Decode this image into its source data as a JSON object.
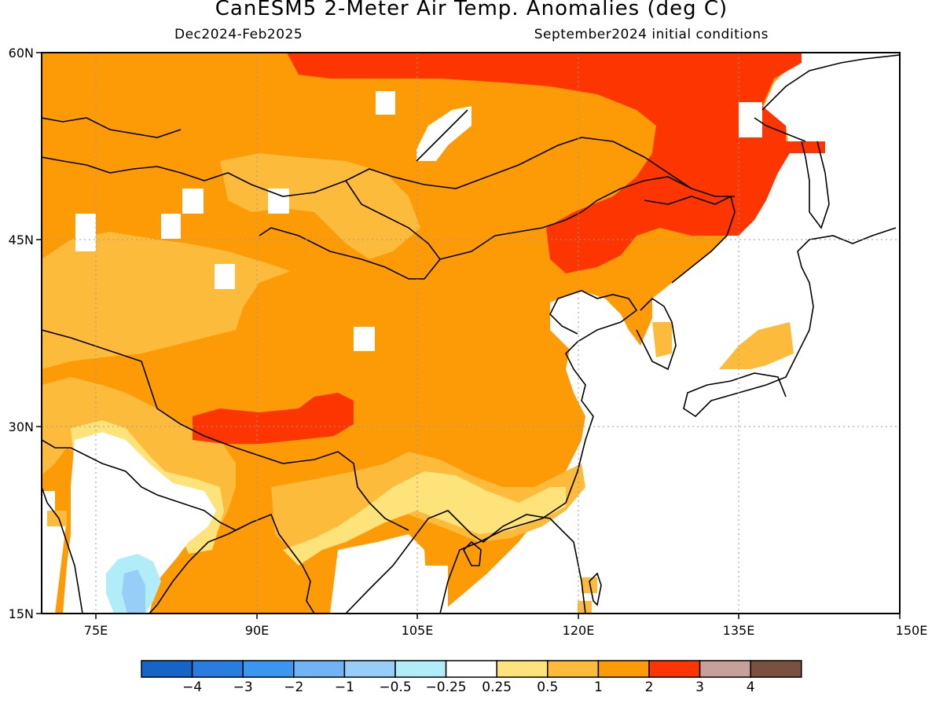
{
  "header": {
    "title": "CanESM5 2-Meter Air Temp. Anomalies (deg C)",
    "period": "Dec2024-Feb2025",
    "init": "September2024 initial conditions"
  },
  "map": {
    "lon_labels": [
      "75E",
      "90E",
      "105E",
      "120E",
      "135E",
      "150E"
    ],
    "lat_labels": [
      "60N",
      "45N",
      "30N",
      "15N"
    ],
    "grid_style": "dotted",
    "land_outline": "coastlines and national borders",
    "regions": [
      {
        "name": "mongolia-siberia-warm",
        "class": "1-2"
      },
      {
        "name": "northeast-china-hot",
        "class": "2-3"
      },
      {
        "name": "tibet-hot",
        "class": "2-3"
      },
      {
        "name": "india-cool",
        "class": "-0.5 to -1"
      }
    ]
  },
  "colorbar": {
    "colors": [
      "#1565c8",
      "#2a7de0",
      "#3a96ee",
      "#70b4f5",
      "#96cef8",
      "#b0edf8",
      "#ffffff",
      "#fde37a",
      "#fdbb3b",
      "#fd9b06",
      "#fd3500",
      "#c8a09a",
      "#7a5040"
    ],
    "labels": [
      "-4",
      "-3",
      "-2",
      "-1",
      "-0.5",
      "-0.25",
      "0.25",
      "0.5",
      "1",
      "2",
      "3",
      "4"
    ]
  }
}
